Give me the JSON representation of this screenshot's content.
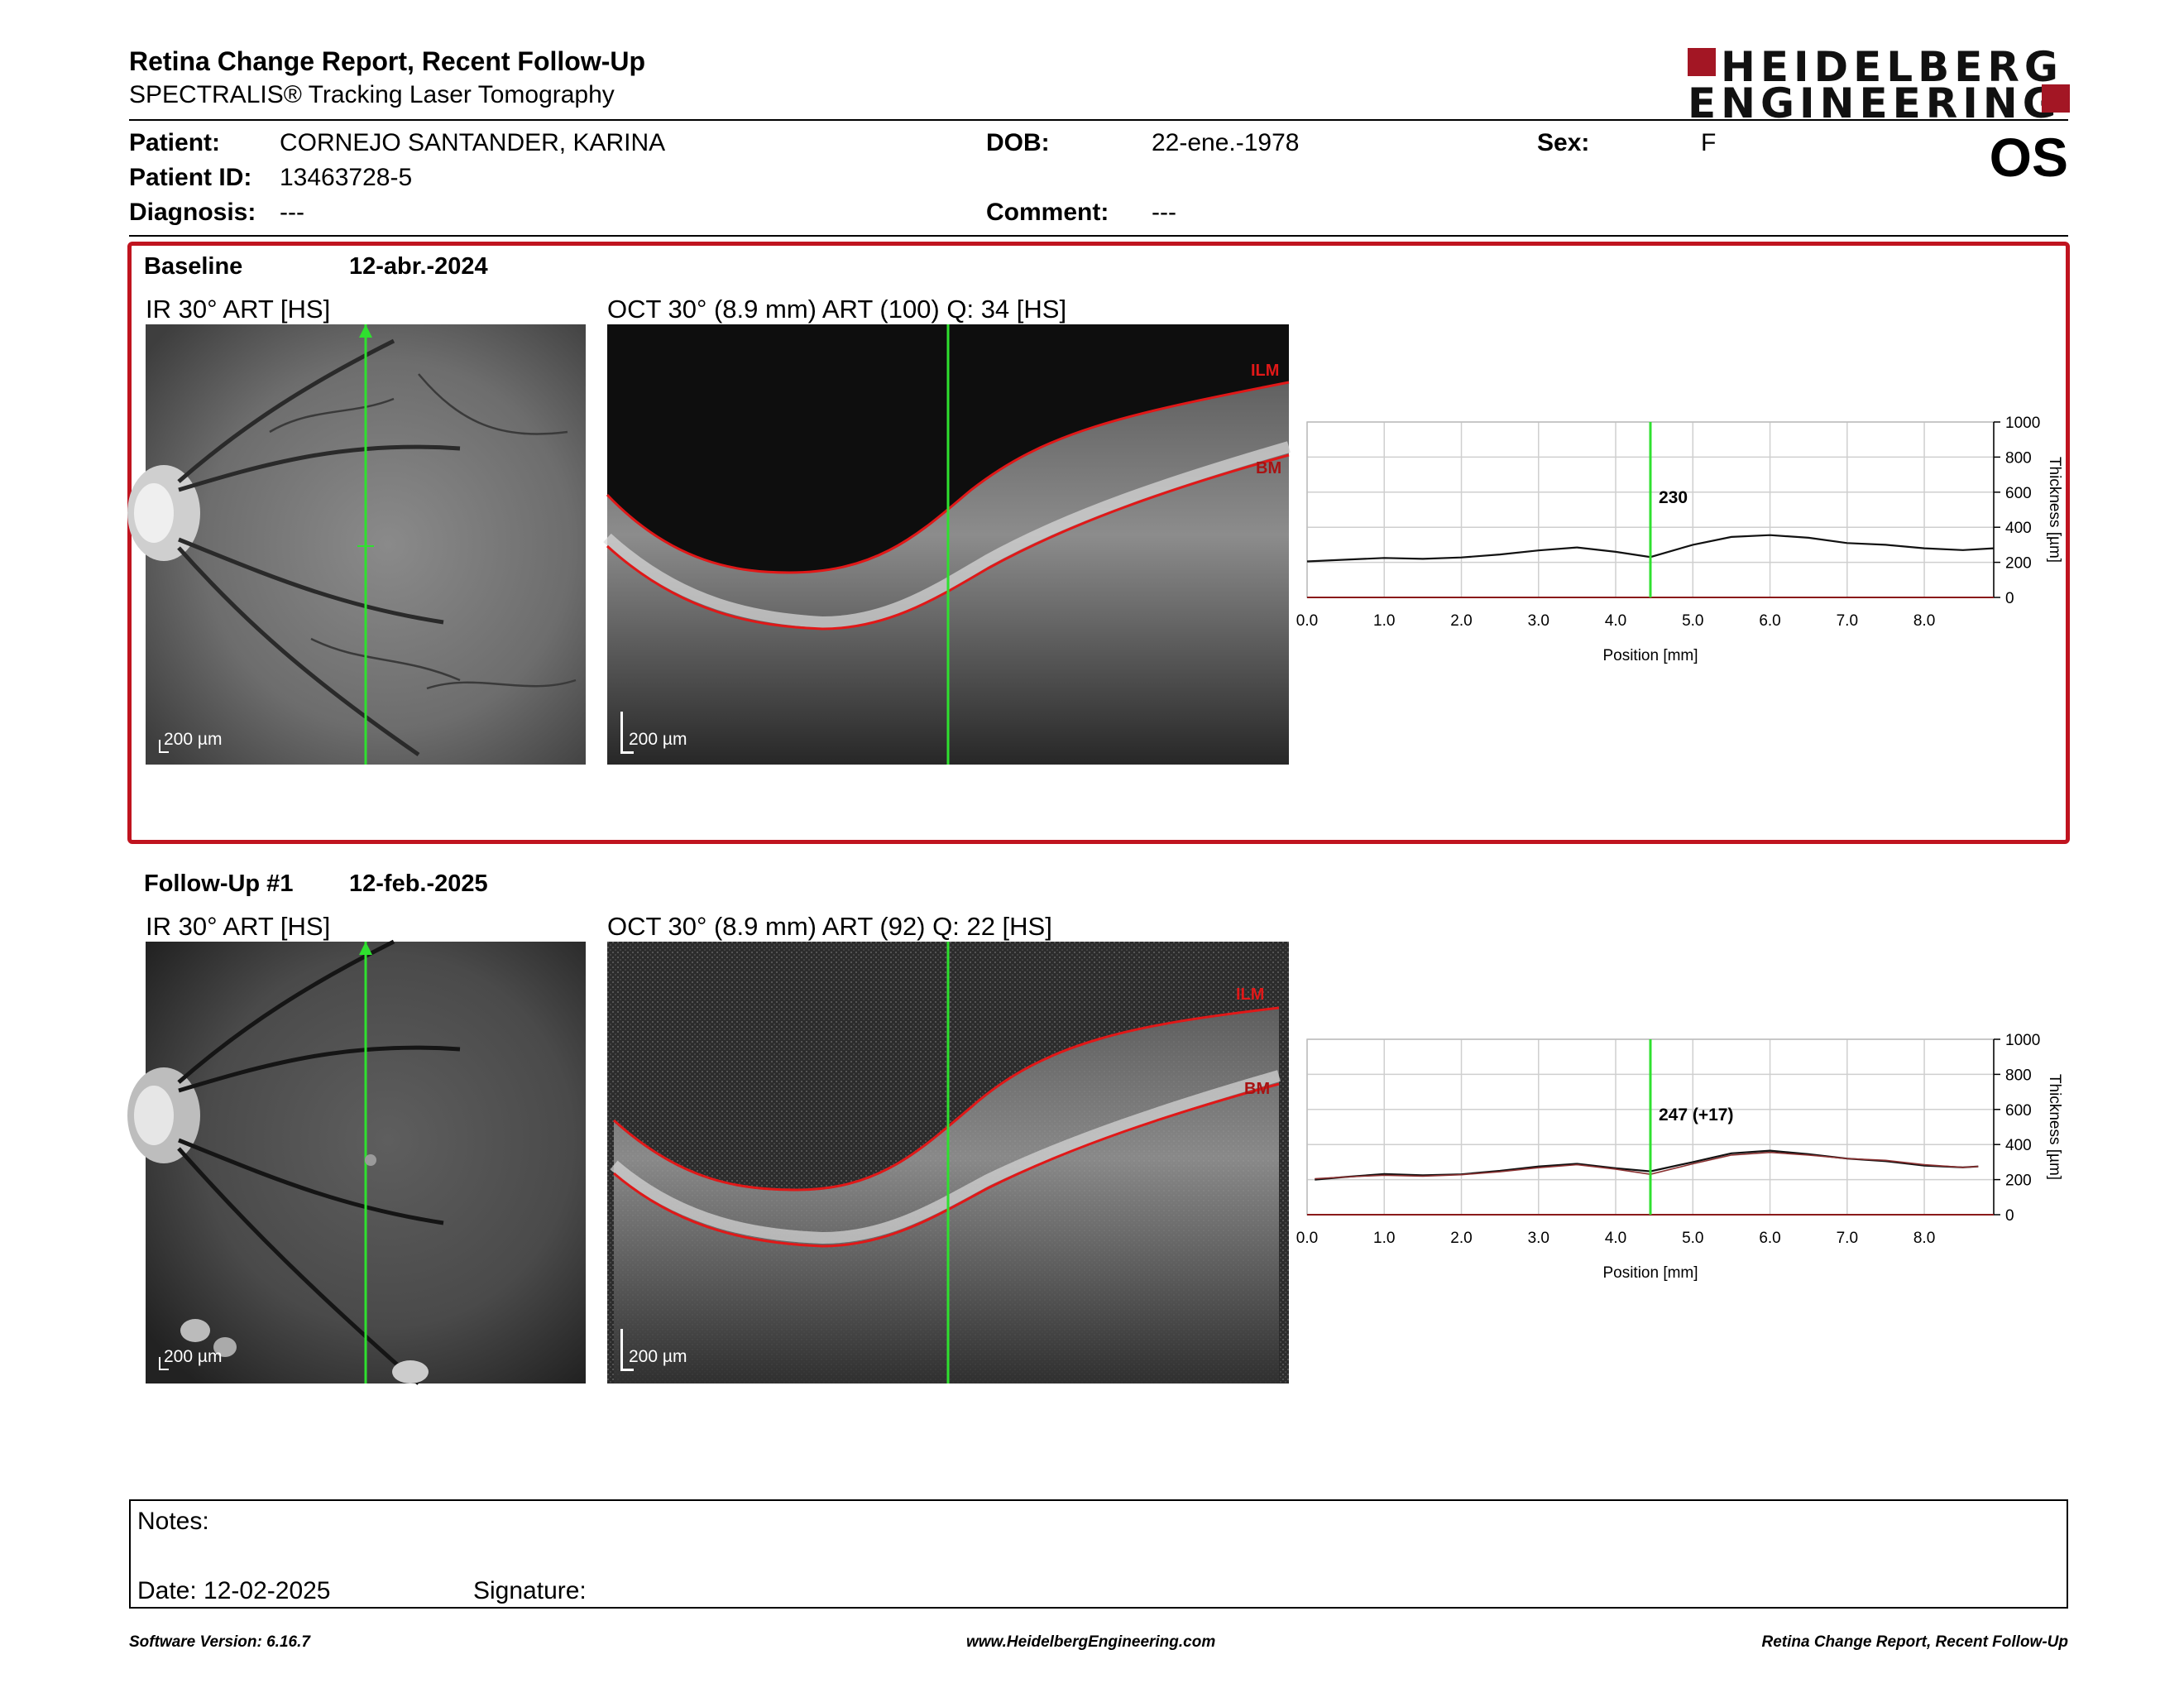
{
  "header": {
    "title": "Retina Change Report, Recent Follow-Up",
    "subtitle": "SPECTRALIS® Tracking Laser Tomography",
    "logo_line1": "HEIDELBERG",
    "logo_line2": "ENGINEERING",
    "eye": "OS"
  },
  "patient": {
    "name_label": "Patient:",
    "name": "CORNEJO SANTANDER, KARINA",
    "id_label": "Patient ID:",
    "id": "13463728-5",
    "diagnosis_label": "Diagnosis:",
    "diagnosis": "---",
    "dob_label": "DOB:",
    "dob": "22-ene.-1978",
    "comment_label": "Comment:",
    "comment": "---",
    "sex_label": "Sex:",
    "sex": "F"
  },
  "baseline": {
    "label": "Baseline",
    "date": "12-abr.-2024",
    "ir_caption": "IR 30° ART [HS]",
    "oct_caption": "OCT 30° (8.9 mm) ART (100) Q: 34 [HS]",
    "scale": "200 µm",
    "ilm": "ILM",
    "bm": "BM"
  },
  "followup": {
    "label": "Follow-Up #1",
    "date": "12-feb.-2025",
    "ir_caption": "IR 30° ART [HS]",
    "oct_caption": "OCT 30° (8.9 mm) ART (92) Q: 22 [HS]",
    "scale": "200 µm",
    "ilm": "ILM",
    "bm": "BM"
  },
  "chart_data": [
    {
      "type": "line",
      "x_label": "Position [mm]",
      "y_label": "Thickness [µm]",
      "x_ticks": [
        "0.0",
        "1.0",
        "2.0",
        "3.0",
        "4.0",
        "5.0",
        "6.0",
        "7.0",
        "8.0"
      ],
      "y_ticks": [
        "0",
        "200",
        "400",
        "600",
        "800",
        "1000"
      ],
      "xlim": [
        0,
        8.9
      ],
      "ylim": [
        0,
        1000
      ],
      "marker_x": 4.45,
      "marker_label": "230",
      "series": [
        {
          "x": [
            0,
            0.5,
            1,
            1.5,
            2,
            2.5,
            3,
            3.5,
            4,
            4.45,
            5,
            5.5,
            6,
            6.5,
            7,
            7.5,
            8,
            8.5,
            8.9
          ],
          "y": [
            205,
            215,
            225,
            220,
            228,
            245,
            268,
            285,
            260,
            230,
            300,
            345,
            355,
            340,
            310,
            300,
            280,
            270,
            280
          ]
        }
      ]
    },
    {
      "type": "line",
      "x_label": "Position [mm]",
      "y_label": "Thickness [µm]",
      "x_ticks": [
        "0.0",
        "1.0",
        "2.0",
        "3.0",
        "4.0",
        "5.0",
        "6.0",
        "7.0",
        "8.0"
      ],
      "y_ticks": [
        "0",
        "200",
        "400",
        "600",
        "800",
        "1000"
      ],
      "xlim": [
        0,
        8.9
      ],
      "ylim": [
        0,
        1000
      ],
      "marker_x": 4.45,
      "marker_label": "247 (+17)",
      "series": [
        {
          "x": [
            0.1,
            0.5,
            1,
            1.5,
            2,
            2.5,
            3,
            3.5,
            4,
            4.45,
            5,
            5.5,
            6,
            6.5,
            7,
            7.5,
            8,
            8.5,
            8.7
          ],
          "y": [
            200,
            215,
            232,
            225,
            230,
            250,
            275,
            290,
            265,
            247,
            300,
            350,
            365,
            345,
            320,
            305,
            280,
            270,
            275
          ]
        },
        {
          "x": [
            0.1,
            0.5,
            1,
            1.5,
            2,
            2.5,
            3,
            3.5,
            4,
            4.45,
            5,
            5.5,
            6,
            6.5,
            7,
            7.5,
            8,
            8.5,
            8.7
          ],
          "y": [
            205,
            215,
            225,
            220,
            228,
            245,
            268,
            285,
            260,
            230,
            290,
            340,
            355,
            340,
            320,
            310,
            285,
            270,
            275
          ]
        }
      ]
    }
  ],
  "notes": {
    "notes_label": "Notes:",
    "date_label": "Date: 12-02-2025",
    "signature_label": "Signature:"
  },
  "footer": {
    "version": "Software Version: 6.16.7",
    "url": "www.HeidelbergEngineering.com",
    "report": "Retina Change Report, Recent Follow-Up"
  }
}
